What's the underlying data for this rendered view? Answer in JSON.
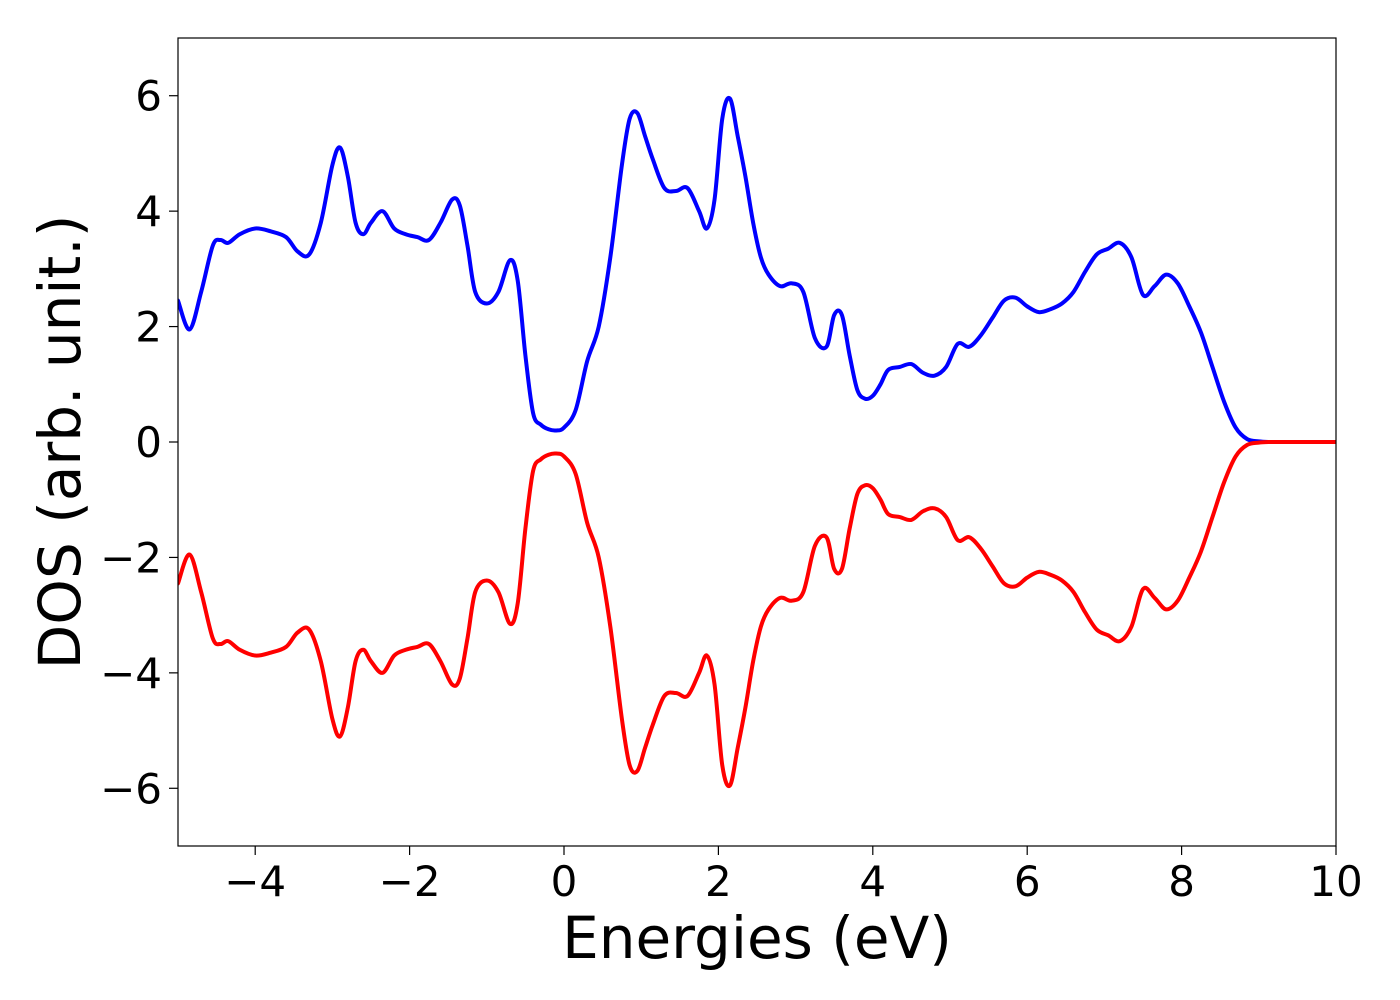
{
  "chart_data": {
    "type": "line",
    "title": "",
    "xlabel": "Energies (eV)",
    "ylabel": "DOS (arb. unit.)",
    "xlim": [
      -5,
      10
    ],
    "ylim": [
      -7,
      7
    ],
    "xticks": [
      -4,
      -2,
      0,
      2,
      4,
      6,
      8,
      10
    ],
    "xtick_labels": [
      "−4",
      "−2",
      "0",
      "2",
      "4",
      "6",
      "8",
      "10"
    ],
    "yticks": [
      -6,
      -4,
      -2,
      0,
      2,
      4,
      6
    ],
    "ytick_labels": [
      "−6",
      "−4",
      "−2",
      "0",
      "2",
      "4",
      "6"
    ],
    "grid": false,
    "legend": "none",
    "series": [
      {
        "color": "#0000ff",
        "x": [
          -5.0,
          -4.85,
          -4.7,
          -4.55,
          -4.45,
          -4.35,
          -4.2,
          -4.0,
          -3.8,
          -3.6,
          -3.45,
          -3.3,
          -3.15,
          -3.0,
          -2.9,
          -2.8,
          -2.7,
          -2.6,
          -2.5,
          -2.35,
          -2.2,
          -2.05,
          -1.9,
          -1.75,
          -1.6,
          -1.45,
          -1.35,
          -1.25,
          -1.15,
          -1.0,
          -0.85,
          -0.7,
          -0.6,
          -0.5,
          -0.4,
          -0.3,
          -0.2,
          -0.1,
          0.0,
          0.15,
          0.3,
          0.45,
          0.6,
          0.75,
          0.85,
          0.95,
          1.05,
          1.15,
          1.3,
          1.45,
          1.6,
          1.75,
          1.85,
          1.95,
          2.05,
          2.15,
          2.25,
          2.35,
          2.45,
          2.55,
          2.65,
          2.8,
          2.95,
          3.1,
          3.25,
          3.4,
          3.5,
          3.6,
          3.7,
          3.8,
          3.9,
          4.0,
          4.1,
          4.2,
          4.35,
          4.5,
          4.65,
          4.8,
          4.95,
          5.1,
          5.25,
          5.4,
          5.55,
          5.7,
          5.85,
          6.0,
          6.15,
          6.3,
          6.45,
          6.6,
          6.75,
          6.9,
          7.05,
          7.2,
          7.35,
          7.5,
          7.65,
          7.8,
          7.95,
          8.1,
          8.25,
          8.4,
          8.55,
          8.7,
          8.85,
          9.0,
          9.15,
          9.3,
          9.45,
          9.6,
          9.75,
          10.0
        ],
        "y": [
          2.45,
          1.95,
          2.6,
          3.4,
          3.5,
          3.45,
          3.6,
          3.7,
          3.65,
          3.55,
          3.3,
          3.25,
          3.8,
          4.8,
          5.1,
          4.6,
          3.8,
          3.6,
          3.8,
          4.0,
          3.7,
          3.6,
          3.55,
          3.5,
          3.8,
          4.2,
          4.1,
          3.4,
          2.6,
          2.4,
          2.6,
          3.15,
          2.8,
          1.5,
          0.5,
          0.3,
          0.22,
          0.2,
          0.25,
          0.55,
          1.4,
          2.0,
          3.2,
          4.8,
          5.6,
          5.7,
          5.3,
          4.9,
          4.4,
          4.35,
          4.4,
          4.0,
          3.7,
          4.2,
          5.6,
          5.95,
          5.3,
          4.6,
          3.8,
          3.2,
          2.9,
          2.7,
          2.75,
          2.6,
          1.8,
          1.65,
          2.2,
          2.2,
          1.5,
          0.9,
          0.75,
          0.8,
          1.0,
          1.25,
          1.3,
          1.35,
          1.2,
          1.15,
          1.3,
          1.7,
          1.65,
          1.85,
          2.15,
          2.45,
          2.5,
          2.35,
          2.25,
          2.3,
          2.4,
          2.6,
          2.95,
          3.25,
          3.35,
          3.45,
          3.2,
          2.55,
          2.7,
          2.9,
          2.75,
          2.35,
          1.9,
          1.3,
          0.7,
          0.25,
          0.05,
          0.01,
          0.0,
          0.0,
          0.0,
          0.0,
          0.0,
          0.0
        ]
      },
      {
        "color": "#ff0000",
        "x": [
          -5.0,
          -4.85,
          -4.7,
          -4.55,
          -4.45,
          -4.35,
          -4.2,
          -4.0,
          -3.8,
          -3.6,
          -3.45,
          -3.3,
          -3.15,
          -3.0,
          -2.9,
          -2.8,
          -2.7,
          -2.6,
          -2.5,
          -2.35,
          -2.2,
          -2.05,
          -1.9,
          -1.75,
          -1.6,
          -1.45,
          -1.35,
          -1.25,
          -1.15,
          -1.0,
          -0.85,
          -0.7,
          -0.6,
          -0.5,
          -0.4,
          -0.3,
          -0.2,
          -0.1,
          0.0,
          0.15,
          0.3,
          0.45,
          0.6,
          0.75,
          0.85,
          0.95,
          1.05,
          1.15,
          1.3,
          1.45,
          1.6,
          1.75,
          1.85,
          1.95,
          2.05,
          2.15,
          2.25,
          2.35,
          2.45,
          2.55,
          2.65,
          2.8,
          2.95,
          3.1,
          3.25,
          3.4,
          3.5,
          3.6,
          3.7,
          3.8,
          3.9,
          4.0,
          4.1,
          4.2,
          4.35,
          4.5,
          4.65,
          4.8,
          4.95,
          5.1,
          5.25,
          5.4,
          5.55,
          5.7,
          5.85,
          6.0,
          6.15,
          6.3,
          6.45,
          6.6,
          6.75,
          6.9,
          7.05,
          7.2,
          7.35,
          7.5,
          7.65,
          7.8,
          7.95,
          8.1,
          8.25,
          8.4,
          8.55,
          8.7,
          8.85,
          9.0,
          9.15,
          9.3,
          9.45,
          9.6,
          9.75,
          10.0
        ],
        "y": [
          -2.45,
          -1.95,
          -2.6,
          -3.4,
          -3.5,
          -3.45,
          -3.6,
          -3.7,
          -3.65,
          -3.55,
          -3.3,
          -3.25,
          -3.8,
          -4.8,
          -5.1,
          -4.6,
          -3.8,
          -3.6,
          -3.8,
          -4.0,
          -3.7,
          -3.6,
          -3.55,
          -3.5,
          -3.8,
          -4.2,
          -4.1,
          -3.4,
          -2.6,
          -2.4,
          -2.6,
          -3.15,
          -2.8,
          -1.5,
          -0.5,
          -0.3,
          -0.22,
          -0.2,
          -0.25,
          -0.55,
          -1.4,
          -2.0,
          -3.2,
          -4.8,
          -5.6,
          -5.7,
          -5.3,
          -4.9,
          -4.4,
          -4.35,
          -4.4,
          -4.0,
          -3.7,
          -4.2,
          -5.6,
          -5.95,
          -5.3,
          -4.6,
          -3.8,
          -3.2,
          -2.9,
          -2.7,
          -2.75,
          -2.6,
          -1.8,
          -1.65,
          -2.2,
          -2.2,
          -1.5,
          -0.9,
          -0.75,
          -0.8,
          -1.0,
          -1.25,
          -1.3,
          -1.35,
          -1.2,
          -1.15,
          -1.3,
          -1.7,
          -1.65,
          -1.85,
          -2.15,
          -2.45,
          -2.5,
          -2.35,
          -2.25,
          -2.3,
          -2.4,
          -2.6,
          -2.95,
          -3.25,
          -3.35,
          -3.45,
          -3.2,
          -2.55,
          -2.7,
          -2.9,
          -2.75,
          -2.35,
          -1.9,
          -1.3,
          -0.7,
          -0.25,
          -0.05,
          -0.01,
          0.0,
          0.0,
          0.0,
          0.0,
          0.0,
          0.0
        ]
      }
    ]
  }
}
